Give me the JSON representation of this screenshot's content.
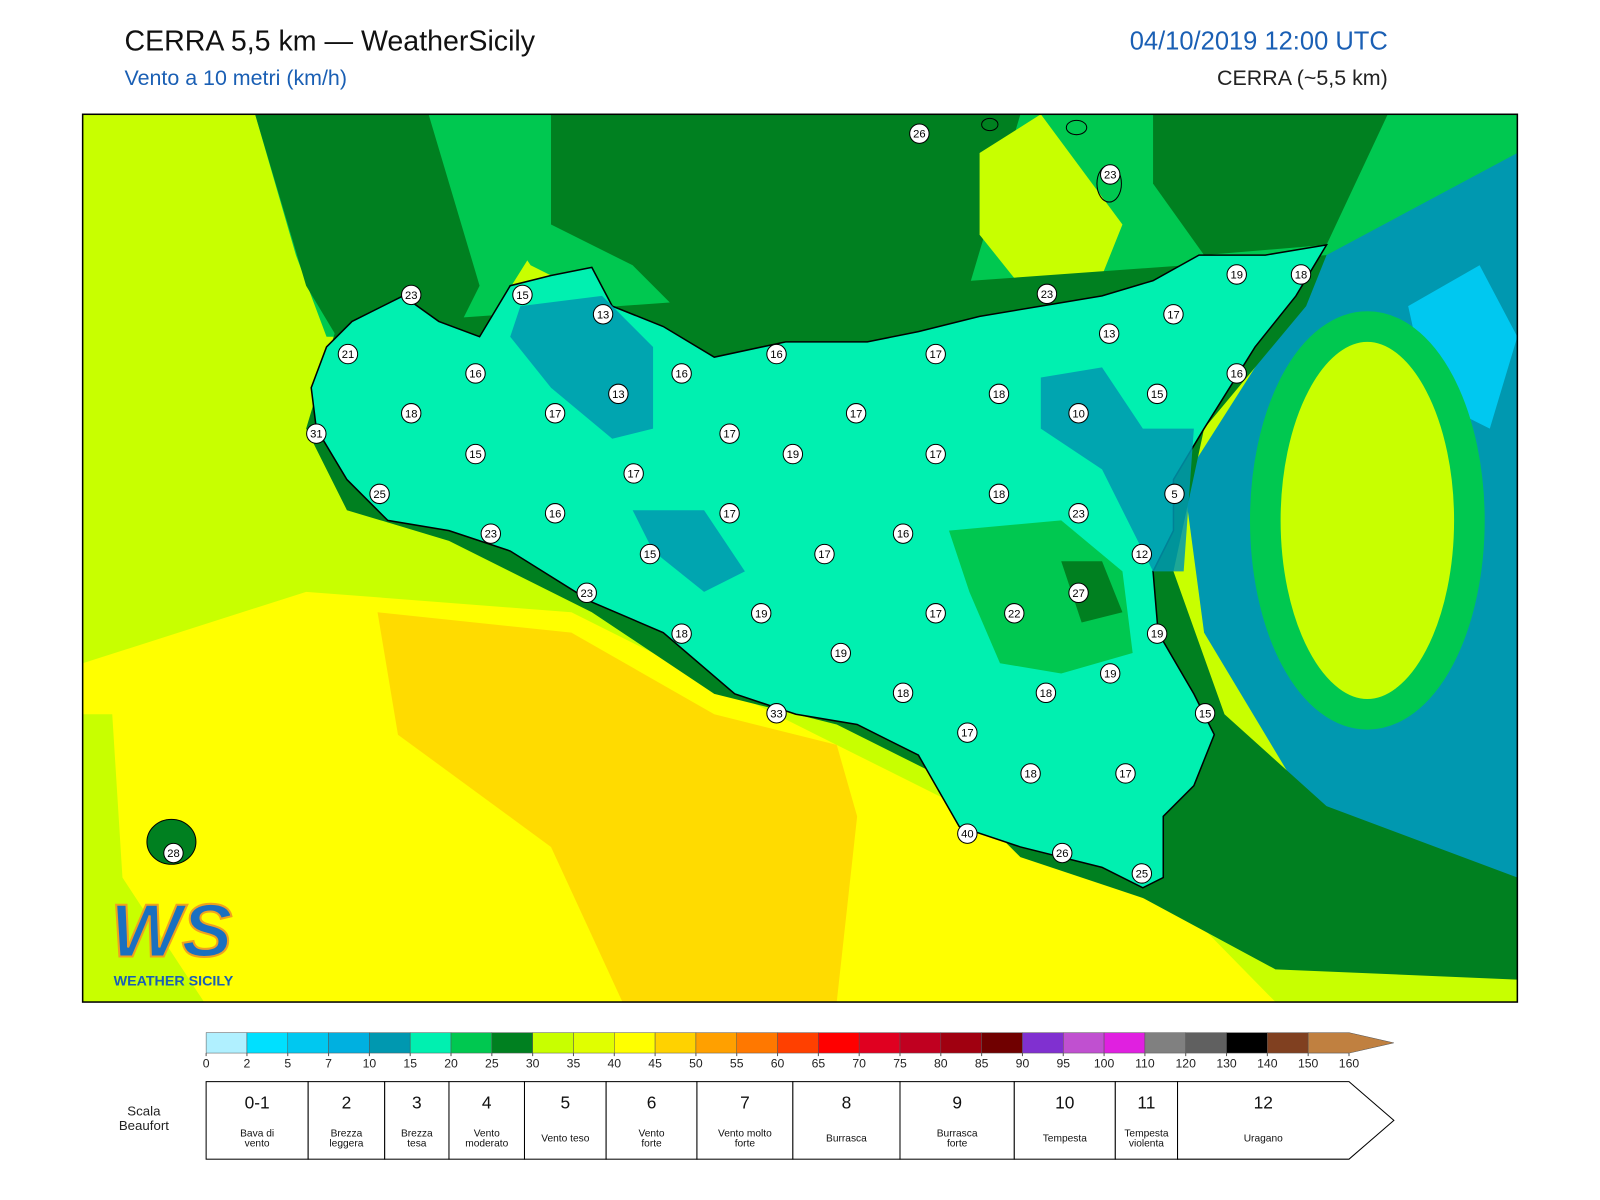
{
  "header": {
    "title": "CERRA 5,5 km — WeatherSicily",
    "subtitle": "Vento a 10 metri (km/h)",
    "datetime": "04/10/2019 12:00 UTC",
    "model": "CERRA (~5,5 km)"
  },
  "logo": {
    "text": "WS",
    "subtitle": "WEATHER SICILY"
  },
  "map": {
    "stations": [
      26,
      23,
      23,
      15,
      13,
      23,
      19,
      18,
      17,
      21,
      16,
      17,
      13,
      16,
      16,
      13,
      18,
      15,
      16,
      18,
      17,
      17,
      10,
      31,
      17,
      15,
      19,
      17,
      17,
      25,
      18,
      5,
      16,
      17,
      23,
      23,
      16,
      15,
      17,
      12,
      27,
      23,
      19,
      17,
      22,
      18,
      19,
      19,
      19,
      18,
      18,
      33,
      15,
      17,
      18,
      17,
      40,
      26,
      25,
      28
    ]
  },
  "colorbar": {
    "ticks": [
      0,
      2,
      5,
      7,
      10,
      15,
      20,
      25,
      30,
      35,
      40,
      45,
      50,
      55,
      60,
      65,
      70,
      75,
      80,
      85,
      90,
      95,
      100,
      110,
      120,
      130,
      140,
      150,
      160
    ],
    "colors": [
      "#b0f0ff",
      "#00e0ff",
      "#00c8f0",
      "#00b0e0",
      "#0098b0",
      "#00f0b0",
      "#00c850",
      "#008020",
      "#c8ff00",
      "#e0ff00",
      "#ffff00",
      "#ffd200",
      "#ffa000",
      "#ff7800",
      "#ff4000",
      "#ff0000",
      "#e00020",
      "#c00020",
      "#a00010",
      "#700000",
      "#8030d0",
      "#c050d0",
      "#e020e0",
      "#808080",
      "#606060",
      "#000000",
      "#804020",
      "#c08040"
    ]
  },
  "beaufort": {
    "title": [
      "Scala",
      "Beaufort"
    ],
    "grades": [
      {
        "force": "0-1",
        "label": [
          "Bava di",
          "vento"
        ]
      },
      {
        "force": "2",
        "label": [
          "Brezza",
          "leggera"
        ]
      },
      {
        "force": "3",
        "label": [
          "Brezza",
          "tesa"
        ]
      },
      {
        "force": "4",
        "label": [
          "Vento",
          "moderato"
        ]
      },
      {
        "force": "5",
        "label": [
          "Vento teso"
        ]
      },
      {
        "force": "6",
        "label": [
          "Vento",
          "forte"
        ]
      },
      {
        "force": "7",
        "label": [
          "Vento molto",
          "forte"
        ]
      },
      {
        "force": "8",
        "label": [
          "Burrasca"
        ]
      },
      {
        "force": "9",
        "label": [
          "Burrasca",
          "forte"
        ]
      },
      {
        "force": "10",
        "label": [
          "Tempesta"
        ]
      },
      {
        "force": "11",
        "label": [
          "Tempesta",
          "violenta"
        ]
      },
      {
        "force": "12",
        "label": [
          "Uragano"
        ]
      }
    ]
  }
}
